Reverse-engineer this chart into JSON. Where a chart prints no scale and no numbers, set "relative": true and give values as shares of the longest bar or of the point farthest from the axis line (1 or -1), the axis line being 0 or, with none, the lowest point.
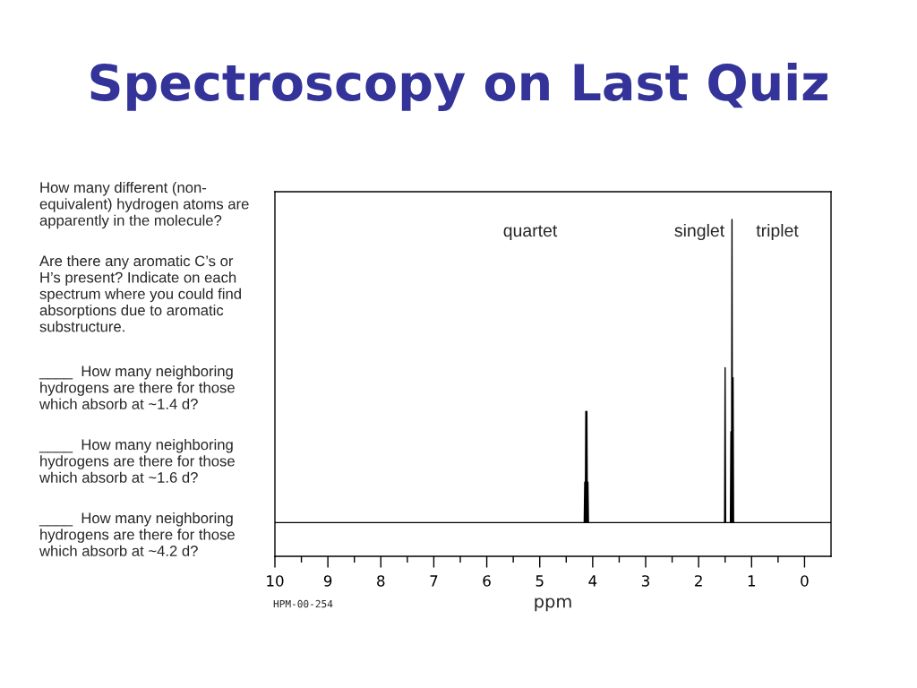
{
  "chart_data": {
    "type": "line",
    "title": "Spectroscopy on Last Quiz",
    "xlabel": "ppm",
    "relative": true,
    "tick_labels": "x",
    "x": [
      10,
      4.16,
      4.15,
      4.14,
      4.13,
      4.12,
      4.11,
      4.1,
      4.09,
      4.08,
      1.51,
      1.5,
      1.49,
      1.4,
      1.39,
      1.38,
      1.37,
      1.36,
      1.35,
      1.34,
      -0.5
    ],
    "series": [
      {
        "color": "#000000",
        "values": [
          0.1,
          0.1,
          0.22,
          0.1,
          0.43,
          0.1,
          0.43,
          0.1,
          0.22,
          0.1,
          0.1,
          0.56,
          0.1,
          0.1,
          0.37,
          0.1,
          1.0,
          0.1,
          0.53,
          0.1,
          0.1
        ]
      }
    ],
    "xlim": [
      10,
      -0.5
    ],
    "xticks": [
      10,
      {
        "value": 9.5,
        "label": null
      },
      9,
      {
        "value": 8.5,
        "label": null
      },
      8,
      {
        "value": 7.5,
        "label": null
      },
      7,
      {
        "value": 6.5,
        "label": null
      },
      6,
      {
        "value": 5.5,
        "label": null
      },
      5,
      {
        "value": 4.5,
        "label": null
      },
      4,
      {
        "value": 3.5,
        "label": null
      },
      3,
      {
        "value": 2.5,
        "label": null
      },
      2,
      {
        "value": 1.5,
        "label": null
      },
      1,
      {
        "value": 0.5,
        "label": null
      },
      0
    ],
    "annotations": [
      "How many different (non-\nequivalent) hydrogen atoms are\napparently in the molecule?",
      "Are there any aromatic C’s or\nH’s present? Indicate on each\nspectrum where you could find\nabsorptions due to aromatic\nsubstructure.",
      "____  How many neighboring\nhydrogens are there for those\nwhich absorb at ~1.4 d?",
      "____  How many neighboring\nhydrogens are there for those\nwhich absorb at ~1.6 d?",
      "____  How many neighboring\nhydrogens are there for those\nwhich absorb at ~4.2 d?",
      "quartet",
      "singlet",
      "triplet",
      "HPM-00-254"
    ]
  }
}
